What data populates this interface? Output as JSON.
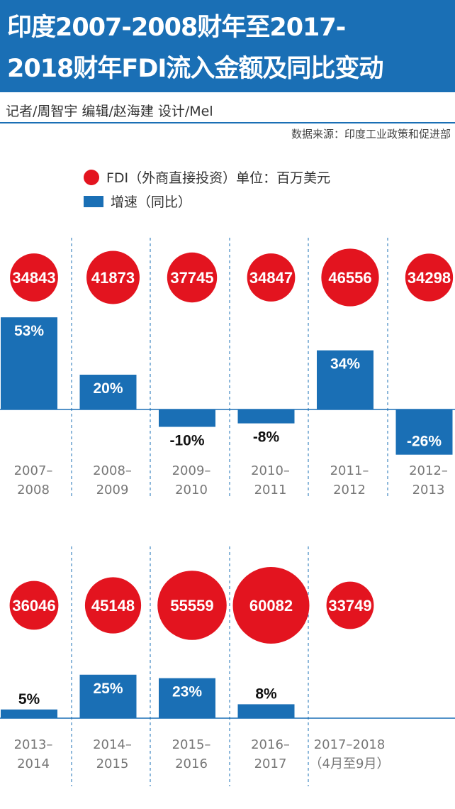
{
  "header": {
    "title_line1": "印度2007-2008财年至2017-",
    "title_line2": "2018财年FDI流入金额及同比变动",
    "credits": "记者/周智宇  编辑/赵海建  设计/Mel",
    "source": "数据来源：印度工业政策和促进部"
  },
  "legend": {
    "fdi": "FDI（外商直接投资）单位：百万美元",
    "growth": "增速（同比）"
  },
  "colors": {
    "accent": "#1a6fb5",
    "circle": "#e3141f"
  },
  "chart_data": {
    "type": "bar",
    "title": "印度2007-2008财年至2017-2018财年FDI流入金额及同比变动",
    "units": {
      "fdi": "百万美元",
      "growth": "%"
    },
    "categories": [
      [
        "2007–",
        "2008"
      ],
      [
        "2008–",
        "2009"
      ],
      [
        "2009–",
        "2010"
      ],
      [
        "2010–",
        "2011"
      ],
      [
        "2011–",
        "2012"
      ],
      [
        "2012–",
        "2013"
      ],
      [
        "2013–",
        "2014"
      ],
      [
        "2014–",
        "2015"
      ],
      [
        "2015–",
        "2016"
      ],
      [
        "2016–",
        "2017"
      ],
      [
        "2017–2018",
        "（4月至9月）"
      ]
    ],
    "series": [
      {
        "name": "FDI（外商直接投资）",
        "values": [
          34843,
          41873,
          37745,
          34847,
          46556,
          34298,
          36046,
          45148,
          55559,
          60082,
          33749
        ]
      },
      {
        "name": "增速（同比）",
        "values": [
          53,
          20,
          -10,
          -8,
          34,
          -26,
          5,
          25,
          23,
          8,
          null
        ]
      }
    ],
    "growth_labels": [
      "53%",
      "20%",
      "-10%",
      "-8%",
      "34%",
      "-26%",
      "5%",
      "25%",
      "23%",
      "8%",
      ""
    ]
  }
}
